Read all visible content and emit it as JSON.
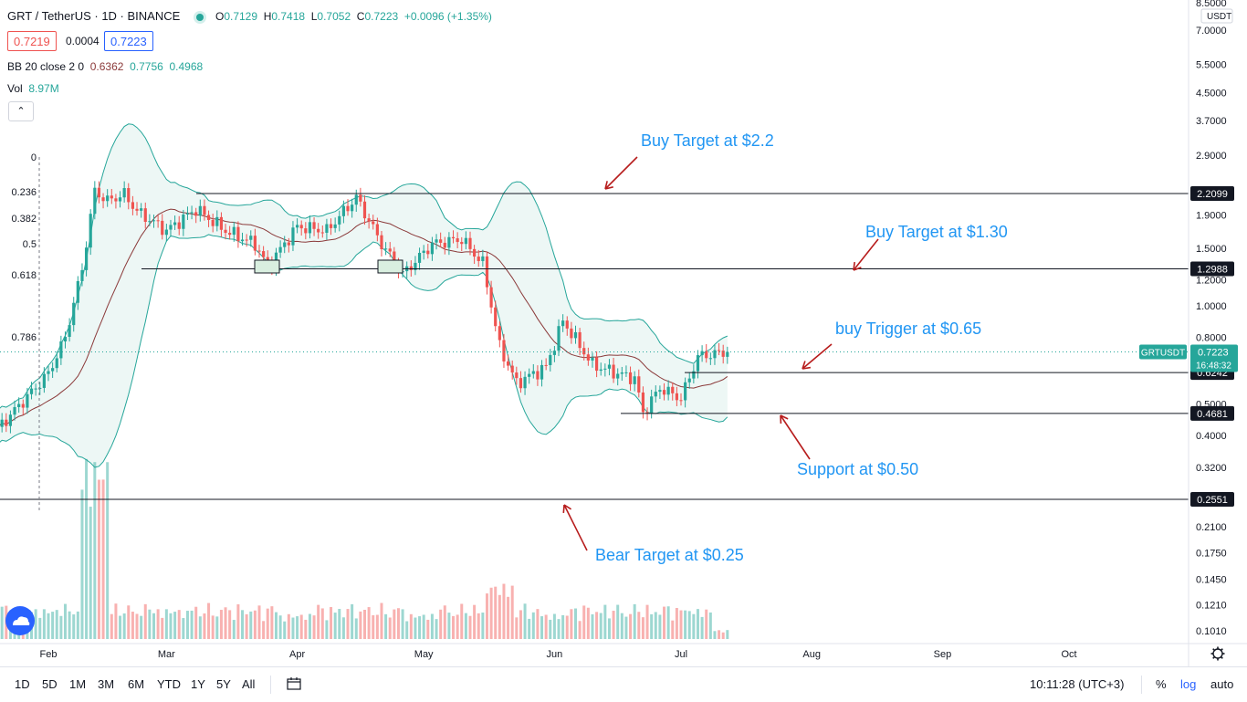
{
  "header": {
    "symbol": "GRT / TetherUS · 1D · BINANCE",
    "ohlc": {
      "o_label": "O",
      "o": "0.7129",
      "h_label": "H",
      "h": "0.7418",
      "l_label": "L",
      "l": "0.7052",
      "c_label": "C",
      "c": "0.7223",
      "change": "+0.0096 (+1.35%)"
    },
    "bid": "0.7219",
    "spread": "0.0004",
    "ask": "0.7223",
    "bb_label": "BB 20 close 2 0",
    "bb_basis": "0.6362",
    "bb_upper": "0.7756",
    "bb_lower": "0.4968",
    "vol_label": "Vol",
    "vol_value": "8.97M",
    "collapse_glyph": "⌃"
  },
  "colors": {
    "up": "#26a69a",
    "down": "#ef5350",
    "bb_line": "#26a69a",
    "bb_fill": "#e8f5f3",
    "basis": "#8b3a3a",
    "annotation": "#2196f3",
    "arrow": "#b71c1c",
    "hline": "#131722"
  },
  "chart_data": {
    "type": "candlestick",
    "scale": "log",
    "currency_label": "USDT",
    "price_ticks": [
      "8.5000",
      "7.0000",
      "5.5000",
      "4.5000",
      "3.7000",
      "2.9000",
      "2.2099",
      "1.9000",
      "1.5000",
      "1.2988",
      "1.2000",
      "1.0000",
      "0.8000",
      "0.6242",
      "0.5000",
      "0.4681",
      "0.4000",
      "0.3200",
      "0.2551",
      "0.2100",
      "0.1750",
      "0.1450",
      "0.1210",
      "0.1010"
    ],
    "x_ticks": [
      "Feb",
      "Mar",
      "Apr",
      "May",
      "Jun",
      "Jul",
      "Aug",
      "Sep",
      "Oct"
    ],
    "fib_levels": [
      "0",
      "0.236",
      "0.382",
      "0.5",
      "0.618",
      "0.786"
    ],
    "horizontal_levels": [
      {
        "label": "2.2099",
        "price": 2.2099
      },
      {
        "label": "1.2988",
        "price": 1.2988
      },
      {
        "label": "0.6242",
        "price": 0.6242
      },
      {
        "label": "0.4681",
        "price": 0.4681
      },
      {
        "label": "0.2551",
        "price": 0.2551
      }
    ],
    "last_price": {
      "symbol": "GRTUSDT",
      "price": "0.7223",
      "countdown": "16:48:32",
      "value": 0.7223
    },
    "annotations": [
      "Buy Target at $2.2",
      "Buy Target at $1.30",
      "buy Trigger at $0.65",
      "Support at $0.50",
      "Bear Target at $0.25"
    ],
    "price_path": [
      [
        "Jan 20",
        0.42
      ],
      [
        "Feb 1",
        0.62
      ],
      [
        "Feb 5",
        0.8
      ],
      [
        "Feb 9",
        1.3
      ],
      [
        "Feb 12",
        2.25
      ],
      [
        "Feb 15",
        2.1
      ],
      [
        "Feb 19",
        2.2
      ],
      [
        "Feb 22",
        1.95
      ],
      [
        "Mar 1",
        1.7
      ],
      [
        "Mar 8",
        1.98
      ],
      [
        "Mar 15",
        1.7
      ],
      [
        "Mar 22",
        1.55
      ],
      [
        "Mar 25",
        1.32
      ],
      [
        "Apr 1",
        1.75
      ],
      [
        "Apr 8",
        1.7
      ],
      [
        "Apr 15",
        2.15
      ],
      [
        "Apr 21",
        1.55
      ],
      [
        "Apr 26",
        1.25
      ],
      [
        "May 3",
        1.55
      ],
      [
        "May 10",
        1.6
      ],
      [
        "May 15",
        1.35
      ],
      [
        "May 19",
        0.75
      ],
      [
        "May 23",
        0.58
      ],
      [
        "May 30",
        0.65
      ],
      [
        "Jun 3",
        0.9
      ],
      [
        "Jun 10",
        0.66
      ],
      [
        "Jun 16",
        0.62
      ],
      [
        "Jun 20",
        0.6
      ],
      [
        "Jun 22",
        0.47
      ],
      [
        "Jun 26",
        0.56
      ],
      [
        "Jul 1",
        0.52
      ],
      [
        "Jul 5",
        0.7
      ],
      [
        "Jul 12",
        0.7223
      ]
    ],
    "volume_millions": [
      [
        "Feb",
        30
      ],
      [
        "Feb 12",
        180
      ],
      [
        "Mar",
        30
      ],
      [
        "Apr",
        25
      ],
      [
        "May",
        25
      ],
      [
        "May 19",
        55
      ],
      [
        "Jun",
        25
      ],
      [
        "Jul 5",
        30
      ],
      [
        "Jul 12",
        8.97
      ]
    ]
  },
  "bottom_bar": {
    "timeframes": [
      "1D",
      "5D",
      "1M",
      "3M",
      "6M",
      "YTD",
      "1Y",
      "5Y",
      "All"
    ],
    "time": "10:11:28 (UTC+3)",
    "percent": "%",
    "log": "log",
    "auto": "auto"
  }
}
